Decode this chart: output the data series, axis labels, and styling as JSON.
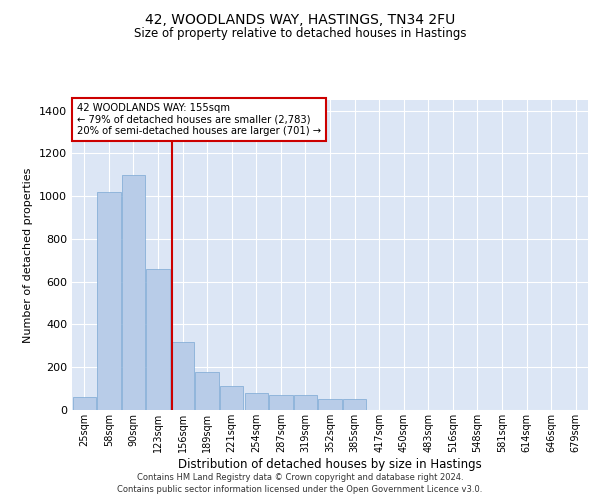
{
  "title_line1": "42, WOODLANDS WAY, HASTINGS, TN34 2FU",
  "title_line2": "Size of property relative to detached houses in Hastings",
  "xlabel": "Distribution of detached houses by size in Hastings",
  "ylabel": "Number of detached properties",
  "bar_labels": [
    "25sqm",
    "58sqm",
    "90sqm",
    "123sqm",
    "156sqm",
    "189sqm",
    "221sqm",
    "254sqm",
    "287sqm",
    "319sqm",
    "352sqm",
    "385sqm",
    "417sqm",
    "450sqm",
    "483sqm",
    "516sqm",
    "548sqm",
    "581sqm",
    "614sqm",
    "646sqm",
    "679sqm"
  ],
  "bar_values": [
    60,
    1020,
    1100,
    660,
    320,
    180,
    110,
    80,
    70,
    70,
    50,
    50,
    0,
    0,
    0,
    0,
    0,
    0,
    0,
    0,
    0
  ],
  "bar_color": "#b8cce8",
  "bar_edge_color": "#7aa8d4",
  "background_color": "#dce6f5",
  "grid_color": "#ffffff",
  "annotation_text_line1": "42 WOODLANDS WAY: 155sqm",
  "annotation_text_line2": "← 79% of detached houses are smaller (2,783)",
  "annotation_text_line3": "20% of semi-detached houses are larger (701) →",
  "annotation_box_color": "#ffffff",
  "annotation_border_color": "#cc0000",
  "vline_color": "#cc0000",
  "ylim": [
    0,
    1450
  ],
  "yticks": [
    0,
    200,
    400,
    600,
    800,
    1000,
    1200,
    1400
  ],
  "footnote_line1": "Contains HM Land Registry data © Crown copyright and database right 2024.",
  "footnote_line2": "Contains public sector information licensed under the Open Government Licence v3.0."
}
